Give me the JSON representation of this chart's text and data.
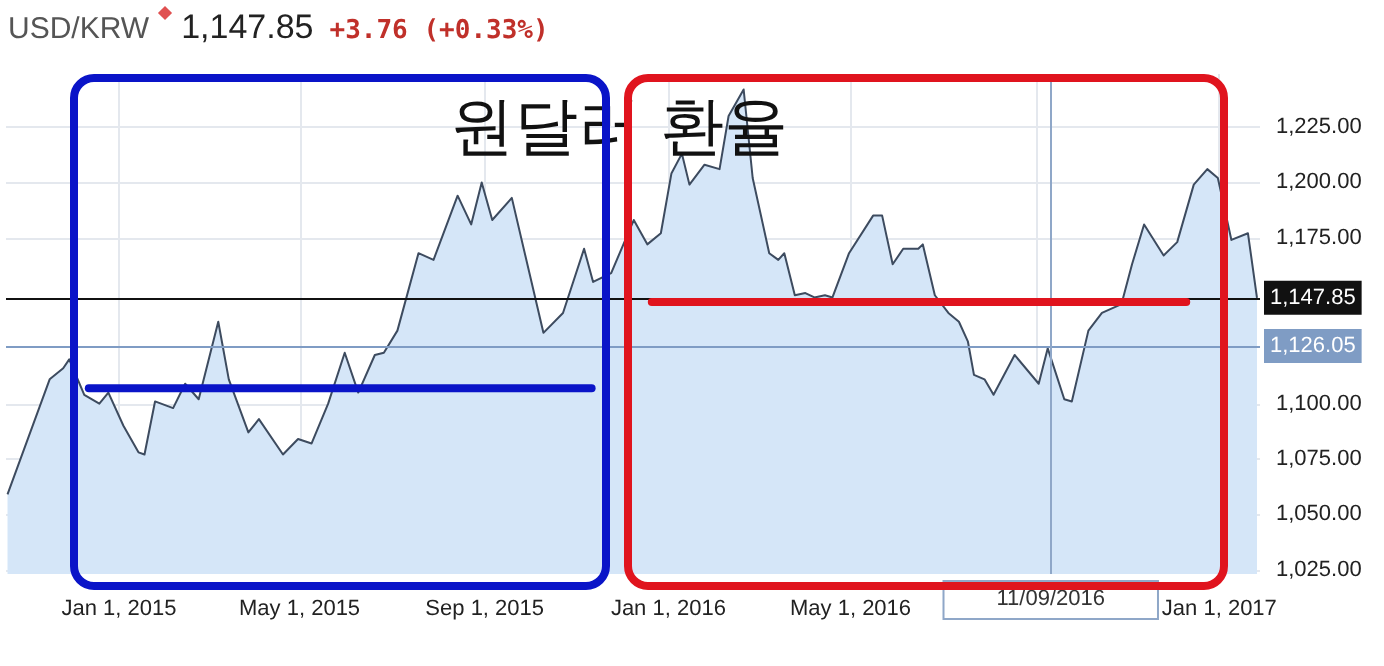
{
  "chart_data": {
    "type": "area",
    "title": "원달러 환율",
    "subtitle": "USD/KRW",
    "annotations": [
      "1,147.85",
      "+3.76 (+0.33%)"
    ],
    "grid": true,
    "marker": "none",
    "xlim": [
      "2014-10-18",
      "2017-01-28"
    ],
    "xticks": [
      {
        "value": "2015-01-01",
        "label": "Jan 1, 2015"
      },
      {
        "value": "2015-05-01",
        "label": "May 1, 2015"
      },
      {
        "value": "2015-09-01",
        "label": "Sep 1, 2015"
      },
      {
        "value": "2016-01-01",
        "label": "Jan 1, 2016"
      },
      {
        "value": "2016-05-01",
        "label": "May 1, 2016"
      },
      {
        "value": "2016-09-01",
        "label": null
      },
      {
        "value": "2017-01-01",
        "label": "Jan 1, 2017"
      }
    ],
    "ylim": [
      1023,
      1249
    ],
    "yticks": [
      {
        "value": 1025,
        "label": "1,025.00"
      },
      {
        "value": 1050,
        "label": "1,050.00"
      },
      {
        "value": 1075,
        "label": "1,075.00"
      },
      {
        "value": 1100,
        "label": "1,100.00"
      },
      {
        "value": 1175,
        "label": "1,175.00"
      },
      {
        "value": 1200,
        "label": "1,200.00"
      },
      {
        "value": 1225,
        "label": "1,225.00"
      }
    ],
    "ref_lines": [
      {
        "axis": "y",
        "value": 1147.85,
        "label": "1,147.85",
        "color": "#111111"
      },
      {
        "axis": "y",
        "value": 1126.05,
        "label": "1,126.05",
        "color": "#7f9cc4"
      },
      {
        "axis": "x",
        "value": "2016-09-11",
        "label": "11/09/2016",
        "color": "#8fa7c8"
      }
    ],
    "series": [
      {
        "color": "#3d4b5f",
        "x": [
          "2014-10-19",
          "2014-11-16",
          "2014-11-25",
          "2014-11-29",
          "2014-12-09",
          "2014-12-19",
          "2014-12-25",
          "2015-01-04",
          "2015-01-14",
          "2015-01-18",
          "2015-01-25",
          "2015-02-06",
          "2015-02-14",
          "2015-02-23",
          "2015-03-08",
          "2015-03-15",
          "2015-03-28",
          "2015-04-04",
          "2015-04-20",
          "2015-04-30",
          "2015-05-09",
          "2015-05-20",
          "2015-05-31",
          "2015-06-09",
          "2015-06-20",
          "2015-06-26",
          "2015-07-05",
          "2015-07-19",
          "2015-07-29",
          "2015-08-14",
          "2015-08-23",
          "2015-08-30",
          "2015-09-06",
          "2015-09-19",
          "2015-10-10",
          "2015-10-23",
          "2015-11-06",
          "2015-11-12",
          "2015-11-24",
          "2015-12-09",
          "2015-12-18",
          "2015-12-27",
          "2016-01-03",
          "2016-01-10",
          "2016-01-15",
          "2016-01-25",
          "2016-02-04",
          "2016-02-10",
          "2016-02-20",
          "2016-02-26",
          "2016-03-08",
          "2016-03-14",
          "2016-03-18",
          "2016-03-25",
          "2016-04-01",
          "2016-04-07",
          "2016-04-14",
          "2016-04-19",
          "2016-04-30",
          "2016-05-16",
          "2016-05-22",
          "2016-05-29",
          "2016-06-05",
          "2016-06-15",
          "2016-06-18",
          "2016-06-26",
          "2016-07-05",
          "2016-07-12",
          "2016-07-18",
          "2016-07-22",
          "2016-07-29",
          "2016-08-04",
          "2016-08-18",
          "2016-09-03",
          "2016-09-09",
          "2016-09-20",
          "2016-09-25",
          "2016-10-06",
          "2016-10-15",
          "2016-10-28",
          "2016-11-04",
          "2016-11-12",
          "2016-11-25",
          "2016-12-04",
          "2016-12-15",
          "2016-12-24",
          "2016-12-31",
          "2017-01-09",
          "2017-01-20",
          "2017-01-26"
        ],
        "values": [
          1059,
          1111,
          1116,
          1120,
          1104,
          1100,
          1105,
          1090,
          1078,
          1077,
          1101,
          1098,
          1109,
          1102,
          1137,
          1111,
          1087,
          1093,
          1077,
          1084,
          1082,
          1100,
          1123,
          1105,
          1122,
          1123,
          1133,
          1168,
          1165,
          1194,
          1181,
          1200,
          1183,
          1193,
          1132,
          1141,
          1170,
          1155,
          1159,
          1183,
          1172,
          1177,
          1204,
          1213,
          1199,
          1208,
          1206,
          1230,
          1242,
          1202,
          1168,
          1165,
          1168,
          1149,
          1150,
          1148,
          1149,
          1148,
          1168,
          1185,
          1185,
          1163,
          1170,
          1170,
          1172,
          1149,
          1141,
          1137,
          1128,
          1113,
          1111,
          1104,
          1122,
          1109,
          1125,
          1102,
          1101,
          1133,
          1141,
          1145,
          1163,
          1181,
          1167,
          1173,
          1199,
          1206,
          1202,
          1174,
          1177,
          1147.85
        ]
      },
      {
        "type": "line",
        "color": "#0a14c8",
        "x": [
          "2014-12-12",
          "2015-11-11"
        ],
        "values": [
          1107,
          1107
        ]
      },
      {
        "type": "line",
        "color": "#e0141e",
        "x": [
          "2015-12-21",
          "2016-12-10"
        ],
        "values": [
          1146,
          1146
        ]
      }
    ]
  }
}
